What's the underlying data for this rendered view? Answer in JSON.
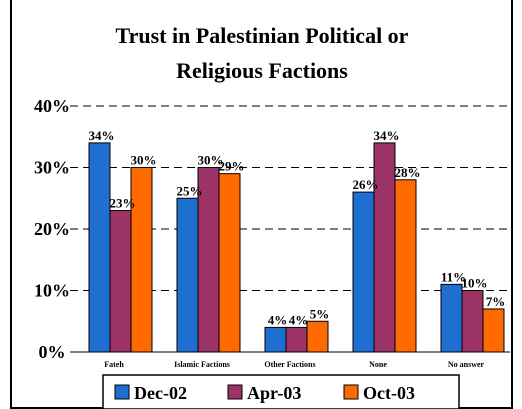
{
  "chart_data": {
    "type": "bar",
    "title": "Trust in Palestinian Political or Religious Factions",
    "title_lines": [
      "Trust in Palestinian Political or",
      "Religious Factions"
    ],
    "categories": [
      "Fateh",
      "Islamic Factions",
      "Other Factions",
      "None",
      "No answer"
    ],
    "series": [
      {
        "name": "Dec-02",
        "values": [
          34,
          25,
          4,
          26,
          11
        ],
        "color": "#1f6fd0"
      },
      {
        "name": "Apr-03",
        "values": [
          23,
          30,
          4,
          34,
          10
        ],
        "color": "#9b3366"
      },
      {
        "name": "Oct-03",
        "values": [
          30,
          29,
          5,
          28,
          7
        ],
        "color": "#ff6a00"
      }
    ],
    "data_labels": [
      [
        "34%",
        "25%",
        "4%",
        "26%",
        "11%"
      ],
      [
        "23%",
        "30%",
        "4%",
        "34%",
        "10%"
      ],
      [
        "30%",
        "29%",
        "5%",
        "28%",
        "7%"
      ]
    ],
    "yticks": [
      "0%",
      "10%",
      "20%",
      "30%",
      "40%"
    ],
    "ylim": [
      0,
      40
    ],
    "xlabel": "",
    "ylabel": "",
    "grid": "horizontal dashed",
    "legend": "bottom"
  }
}
